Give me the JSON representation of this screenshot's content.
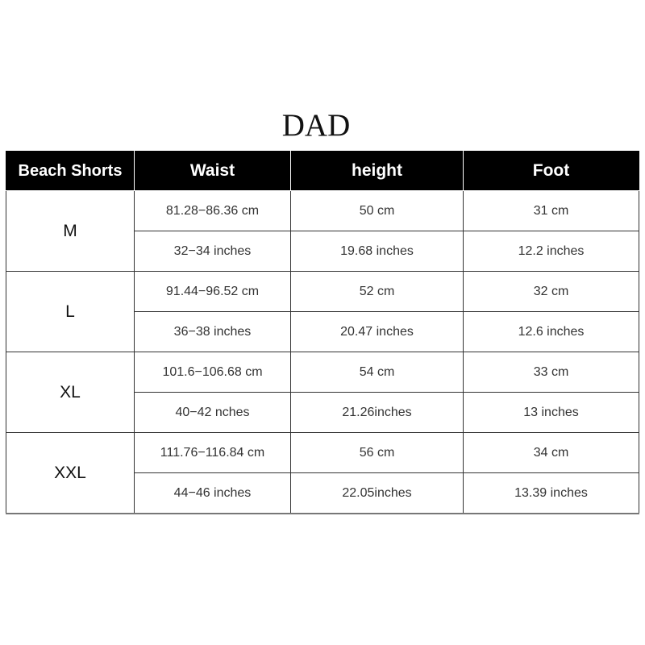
{
  "title": "DAD",
  "headers": [
    "Beach Shorts",
    "Waist",
    "height",
    "Foot"
  ],
  "rows": [
    {
      "size": "M",
      "cm": [
        "81.28−86.36 cm",
        "50 cm",
        "31 cm"
      ],
      "in": [
        "32−34 inches",
        "19.68 inches",
        "12.2 inches"
      ]
    },
    {
      "size": "L",
      "cm": [
        "91.44−96.52 cm",
        "52 cm",
        "32 cm"
      ],
      "in": [
        "36−38 inches",
        "20.47 inches",
        "12.6 inches"
      ]
    },
    {
      "size": "XL",
      "cm": [
        "101.6−106.68 cm",
        "54 cm",
        "33 cm"
      ],
      "in": [
        "40−42 nches",
        "21.26inches",
        "13 inches"
      ]
    },
    {
      "size": "XXL",
      "cm": [
        "111.76−116.84 cm",
        "56 cm",
        "34 cm"
      ],
      "in": [
        "44−46 inches",
        "22.05inches",
        "13.39 inches"
      ]
    }
  ]
}
